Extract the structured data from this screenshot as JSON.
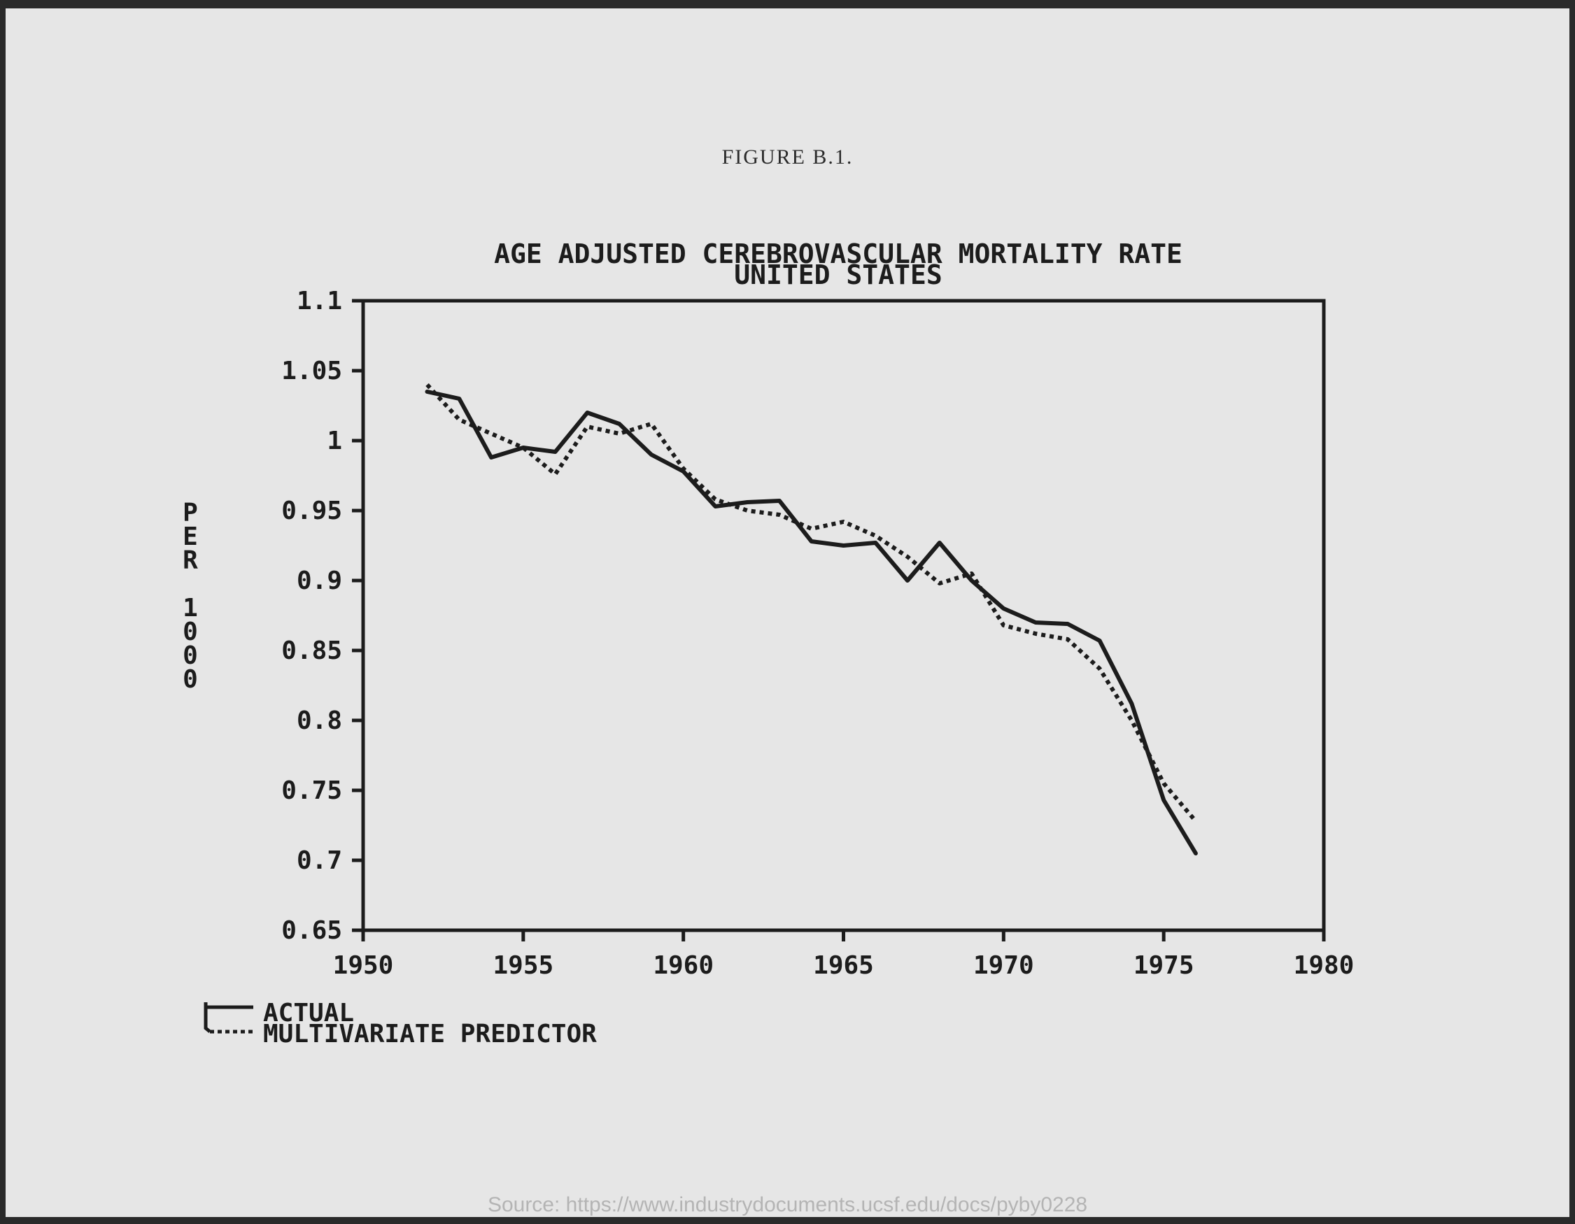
{
  "figure_label": "FIGURE B.1.",
  "source": "Source: https://www.industrydocuments.ucsf.edu/docs/pyby0228",
  "chart_data": {
    "type": "line",
    "title": [
      "AGE ADJUSTED CEREBROVASCULAR MORTALITY RATE",
      "UNITED STATES"
    ],
    "ylabel": "PER 1000",
    "xlim": [
      1950,
      1980
    ],
    "ylim": [
      0.65,
      1.1
    ],
    "x_ticks": [
      "1950",
      "1955",
      "1960",
      "1965",
      "1970",
      "1975",
      "1980"
    ],
    "y_ticks": [
      "1.1",
      "1.05",
      "1",
      "0.95",
      "0.9",
      "0.85",
      "0.8",
      "0.75",
      "0.7",
      "0.65"
    ],
    "x_tick_values": [
      1950,
      1955,
      1960,
      1965,
      1970,
      1975,
      1980
    ],
    "y_tick_values": [
      1.1,
      1.05,
      1.0,
      0.95,
      0.9,
      0.85,
      0.8,
      0.75,
      0.7,
      0.65
    ],
    "grid": false,
    "legend_position": "bottom-left",
    "x": [
      1952,
      1953,
      1954,
      1955,
      1956,
      1957,
      1958,
      1959,
      1960,
      1961,
      1962,
      1963,
      1964,
      1965,
      1966,
      1967,
      1968,
      1969,
      1970,
      1971,
      1972,
      1973,
      1974,
      1975,
      1976
    ],
    "series": [
      {
        "name": "ACTUAL",
        "style": "solid",
        "values": [
          1.035,
          1.03,
          0.988,
          0.995,
          0.992,
          1.02,
          1.012,
          0.99,
          0.978,
          0.953,
          0.956,
          0.957,
          0.928,
          0.925,
          0.927,
          0.9,
          0.927,
          0.9,
          0.88,
          0.87,
          0.869,
          0.857,
          0.812,
          0.743,
          0.705
        ]
      },
      {
        "name": "MULTIVARIATE PREDICTOR",
        "style": "dotted",
        "values": [
          1.04,
          1.015,
          1.005,
          0.995,
          0.976,
          1.01,
          1.005,
          1.012,
          0.98,
          0.958,
          0.95,
          0.947,
          0.937,
          0.942,
          0.932,
          0.917,
          0.898,
          0.905,
          0.868,
          0.862,
          0.858,
          0.837,
          0.8,
          0.755,
          0.728
        ]
      }
    ],
    "colors": {
      "line": "#1c1c1c",
      "axis": "#1c1c1c"
    }
  }
}
